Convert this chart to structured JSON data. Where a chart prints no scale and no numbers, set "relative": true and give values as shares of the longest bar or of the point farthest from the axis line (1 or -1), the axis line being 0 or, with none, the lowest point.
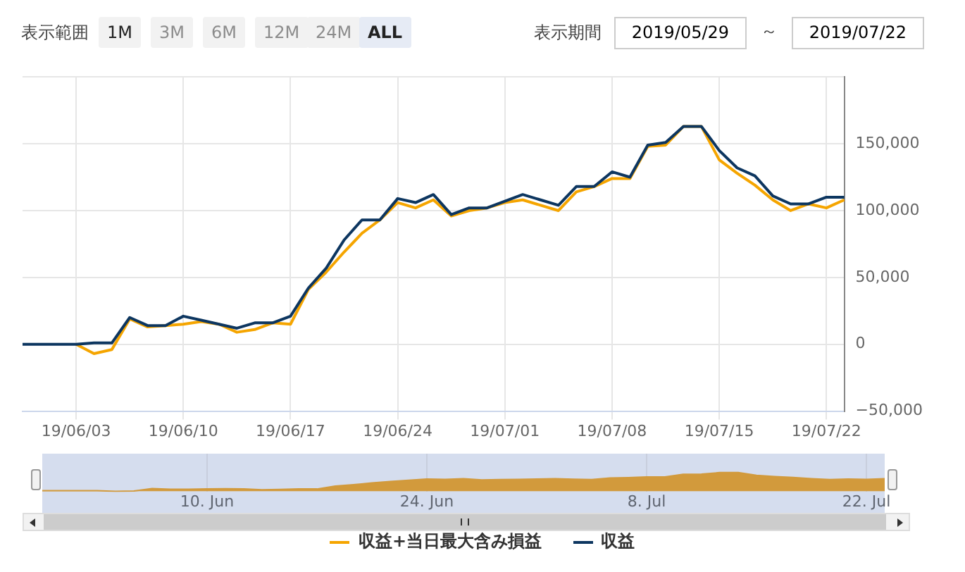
{
  "chart_data": [
    {
      "type": "line",
      "annotations": [
        "表示範囲",
        "1M",
        "3M",
        "6M",
        "12M",
        "24M",
        "ALL",
        "表示期間",
        "2019/05/29",
        "～",
        "2019/07/22"
      ],
      "categories": [
        null,
        null,
        null,
        "19/06/03",
        null,
        null,
        null,
        null,
        null,
        "19/06/10",
        null,
        null,
        null,
        null,
        null,
        "19/06/17",
        null,
        null,
        null,
        null,
        null,
        "19/06/24",
        null,
        null,
        null,
        null,
        null,
        "19/07/01",
        null,
        null,
        null,
        null,
        null,
        "19/07/08",
        null,
        null,
        null,
        null,
        null,
        "19/07/15",
        null,
        null,
        null,
        null,
        null,
        "19/07/22",
        null
      ],
      "series": [
        {
          "name": "収益+当日最大含み損益",
          "color": "#f5a500",
          "values": [
            null,
            null,
            null,
            0,
            -7000,
            -4000,
            19000,
            13000,
            14000,
            15000,
            17000,
            15000,
            9000,
            11000,
            16000,
            15000,
            41000,
            54000,
            69000,
            83000,
            93000,
            106000,
            102000,
            108000,
            96000,
            100000,
            102000,
            106000,
            108000,
            104000,
            100000,
            114000,
            118000,
            124000,
            124000,
            148000,
            149000,
            163000,
            163000,
            138000,
            128000,
            119000,
            108000,
            100000,
            105000,
            102000,
            108000
          ]
        },
        {
          "name": "収益",
          "color": "#0d3660",
          "values": [
            0,
            0,
            0,
            0,
            1000,
            1000,
            20000,
            14000,
            14000,
            21000,
            18000,
            15000,
            12000,
            16000,
            16000,
            21000,
            42000,
            57000,
            78000,
            93000,
            93000,
            109000,
            106000,
            112000,
            97000,
            102000,
            102000,
            107000,
            112000,
            108000,
            104000,
            118000,
            118000,
            129000,
            125000,
            149000,
            151000,
            163000,
            163000,
            145000,
            132000,
            126000,
            111000,
            105000,
            105000,
            110000,
            110000
          ]
        }
      ],
      "ylim": [
        -50000,
        200000
      ],
      "yticks": [
        {
          "value": -50000,
          "label": "−50,000"
        },
        0,
        {
          "value": 50000,
          "label": "50,000"
        },
        {
          "value": 100000,
          "label": "100,000"
        },
        {
          "value": 150000,
          "label": "150,000"
        },
        {
          "value": 200000,
          "label": null
        }
      ],
      "grid": true,
      "legend": "bottom"
    },
    {
      "type": "area",
      "relative": true,
      "color": "#d29a3c",
      "grid": "x",
      "categories": [
        null,
        null,
        null,
        null,
        null,
        null,
        null,
        null,
        null,
        "10. Jun",
        null,
        null,
        null,
        null,
        null,
        null,
        null,
        null,
        null,
        null,
        null,
        "24. Jun",
        null,
        null,
        null,
        null,
        null,
        null,
        null,
        null,
        null,
        null,
        null,
        "8. Jul",
        null,
        null,
        null,
        null,
        null,
        null,
        null,
        null,
        null,
        null,
        null,
        "22. Jul",
        null
      ],
      "values": [
        0.04,
        0.04,
        0.04,
        0.04,
        0,
        0.02,
        0.15,
        0.12,
        0.12,
        0.13,
        0.14,
        0.13,
        0.09,
        0.11,
        0.13,
        0.13,
        0.28,
        0.36,
        0.45,
        0.53,
        0.59,
        0.66,
        0.64,
        0.68,
        0.61,
        0.63,
        0.64,
        0.66,
        0.68,
        0.65,
        0.63,
        0.71,
        0.73,
        0.77,
        0.77,
        0.91,
        0.92,
        1,
        1,
        0.85,
        0.79,
        0.74,
        0.68,
        0.63,
        0.66,
        0.64,
        0.68
      ]
    }
  ]
}
